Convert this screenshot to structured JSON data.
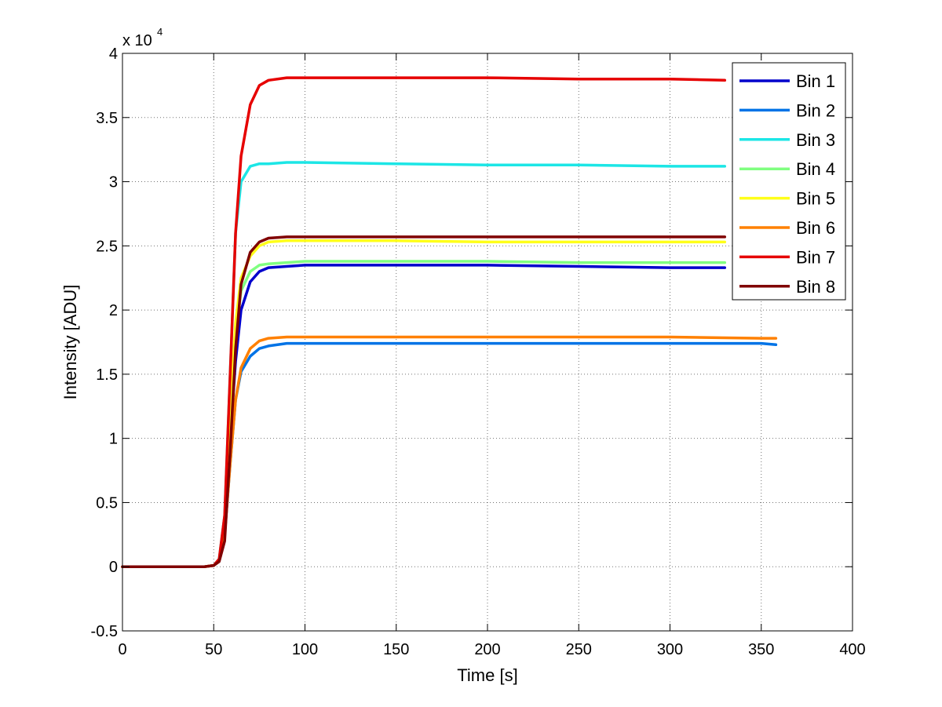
{
  "chart_data": {
    "type": "line",
    "xlabel": "Time [s]",
    "ylabel": "Intensity [ADU]",
    "y_multiplier": "x 10",
    "y_multiplier_exponent": "4",
    "xlim": [
      0,
      400
    ],
    "ylim": [
      -0.5,
      4
    ],
    "xticks": [
      "0",
      "50",
      "100",
      "150",
      "200",
      "250",
      "300",
      "350",
      "400"
    ],
    "yticks": [
      "-0.5",
      "0",
      "0.5",
      "1",
      "1.5",
      "2",
      "2.5",
      "3",
      "3.5",
      "4"
    ],
    "xtick_values": [
      0,
      50,
      100,
      150,
      200,
      250,
      300,
      350,
      400
    ],
    "ytick_values": [
      -0.5,
      0,
      0.5,
      1,
      1.5,
      2,
      2.5,
      3,
      3.5,
      4
    ],
    "grid": true,
    "legend_position": "top-right",
    "series": [
      {
        "name": "Bin 1",
        "color": "#0000CC",
        "x": [
          0,
          45,
          50,
          53,
          56,
          59,
          62,
          65,
          70,
          75,
          80,
          90,
          100,
          150,
          200,
          250,
          300,
          330
        ],
        "y": [
          0,
          0,
          0.01,
          0.05,
          0.3,
          1.0,
          1.6,
          2.0,
          2.22,
          2.3,
          2.33,
          2.34,
          2.35,
          2.35,
          2.35,
          2.34,
          2.33,
          2.33
        ]
      },
      {
        "name": "Bin 2",
        "color": "#0073E6",
        "x": [
          0,
          45,
          50,
          53,
          56,
          59,
          62,
          65,
          70,
          75,
          80,
          90,
          100,
          150,
          200,
          250,
          300,
          350,
          358
        ],
        "y": [
          0,
          0,
          0.01,
          0.05,
          0.25,
          0.8,
          1.3,
          1.52,
          1.64,
          1.7,
          1.72,
          1.74,
          1.74,
          1.74,
          1.74,
          1.74,
          1.74,
          1.74,
          1.73
        ]
      },
      {
        "name": "Bin 3",
        "color": "#1CE6E6",
        "x": [
          0,
          45,
          50,
          53,
          56,
          59,
          62,
          65,
          70,
          75,
          80,
          90,
          100,
          150,
          200,
          250,
          300,
          330
        ],
        "y": [
          0,
          0,
          0.01,
          0.06,
          0.4,
          1.5,
          2.6,
          3.0,
          3.12,
          3.14,
          3.14,
          3.15,
          3.15,
          3.14,
          3.13,
          3.13,
          3.12,
          3.12
        ]
      },
      {
        "name": "Bin 4",
        "color": "#80FF80",
        "x": [
          0,
          45,
          50,
          53,
          56,
          59,
          62,
          65,
          70,
          75,
          80,
          90,
          100,
          150,
          200,
          250,
          300,
          330
        ],
        "y": [
          0,
          0,
          0.01,
          0.05,
          0.3,
          1.1,
          1.8,
          2.15,
          2.3,
          2.35,
          2.36,
          2.37,
          2.38,
          2.38,
          2.38,
          2.37,
          2.37,
          2.37
        ]
      },
      {
        "name": "Bin 5",
        "color": "#FFFF1A",
        "x": [
          0,
          45,
          50,
          53,
          56,
          59,
          62,
          65,
          70,
          75,
          80,
          90,
          100,
          150,
          200,
          250,
          300,
          330
        ],
        "y": [
          0,
          0,
          0.01,
          0.05,
          0.3,
          1.2,
          1.9,
          2.25,
          2.42,
          2.5,
          2.53,
          2.54,
          2.54,
          2.54,
          2.53,
          2.53,
          2.53,
          2.53
        ]
      },
      {
        "name": "Bin 6",
        "color": "#FF8000",
        "x": [
          0,
          45,
          50,
          53,
          56,
          59,
          62,
          65,
          70,
          75,
          80,
          90,
          100,
          150,
          200,
          250,
          300,
          350,
          358
        ],
        "y": [
          0,
          0,
          0.01,
          0.05,
          0.25,
          0.8,
          1.3,
          1.55,
          1.7,
          1.76,
          1.78,
          1.79,
          1.79,
          1.79,
          1.79,
          1.79,
          1.79,
          1.78,
          1.78
        ]
      },
      {
        "name": "Bin 7",
        "color": "#E60000",
        "x": [
          0,
          45,
          50,
          53,
          56,
          59,
          62,
          65,
          70,
          75,
          80,
          90,
          100,
          150,
          200,
          250,
          300,
          330
        ],
        "y": [
          0,
          0,
          0.01,
          0.06,
          0.4,
          1.5,
          2.6,
          3.2,
          3.6,
          3.75,
          3.79,
          3.81,
          3.81,
          3.81,
          3.81,
          3.8,
          3.8,
          3.79
        ]
      },
      {
        "name": "Bin 8",
        "color": "#800000",
        "x": [
          0,
          45,
          50,
          53,
          56,
          59,
          62,
          65,
          70,
          75,
          80,
          90,
          100,
          150,
          200,
          250,
          300,
          330
        ],
        "y": [
          0,
          0,
          0.01,
          0.04,
          0.2,
          0.9,
          1.7,
          2.2,
          2.45,
          2.53,
          2.56,
          2.57,
          2.57,
          2.57,
          2.57,
          2.57,
          2.57,
          2.57
        ]
      }
    ]
  }
}
